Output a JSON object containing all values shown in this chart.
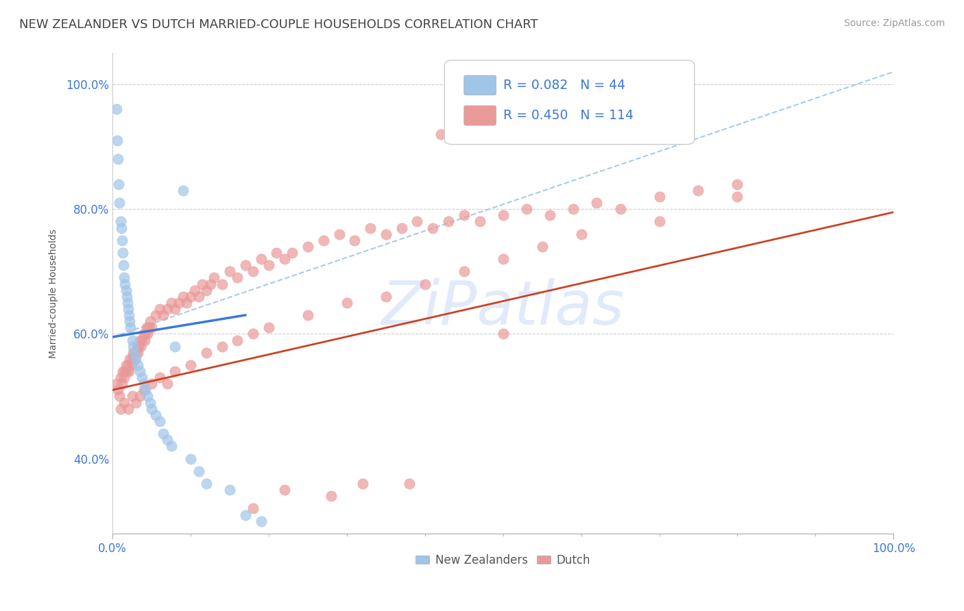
{
  "title": "NEW ZEALANDER VS DUTCH MARRIED-COUPLE HOUSEHOLDS CORRELATION CHART",
  "source": "Source: ZipAtlas.com",
  "ylabel": "Married-couple Households",
  "nz_R": 0.082,
  "nz_N": 44,
  "dutch_R": 0.45,
  "dutch_N": 114,
  "nz_color": "#9fc5e8",
  "dutch_color": "#ea9999",
  "nz_line_color": "#3c78d8",
  "dutch_line_color": "#cc4125",
  "diag_line_color": "#9fc5e8",
  "hgrid_color": "#cccccc",
  "watermark": "ZiPatlas",
  "watermark_color": "#c9daf8",
  "background_color": "#ffffff",
  "xmin": 0.0,
  "xmax": 1.0,
  "ymin": 0.28,
  "ymax": 1.05,
  "nz_x": [
    0.005,
    0.006,
    0.007,
    0.008,
    0.009,
    0.01,
    0.011,
    0.012,
    0.013,
    0.014,
    0.015,
    0.016,
    0.017,
    0.018,
    0.019,
    0.02,
    0.021,
    0.022,
    0.023,
    0.025,
    0.026,
    0.028,
    0.03,
    0.032,
    0.035,
    0.038,
    0.04,
    0.042,
    0.045,
    0.048,
    0.05,
    0.055,
    0.06,
    0.065,
    0.07,
    0.075,
    0.08,
    0.09,
    0.1,
    0.11,
    0.12,
    0.15,
    0.17,
    0.19
  ],
  "nz_y": [
    0.96,
    0.91,
    0.88,
    0.84,
    0.81,
    0.78,
    0.77,
    0.75,
    0.73,
    0.71,
    0.69,
    0.68,
    0.67,
    0.66,
    0.65,
    0.64,
    0.63,
    0.62,
    0.61,
    0.59,
    0.58,
    0.57,
    0.56,
    0.55,
    0.54,
    0.53,
    0.52,
    0.51,
    0.5,
    0.49,
    0.48,
    0.47,
    0.46,
    0.44,
    0.43,
    0.42,
    0.58,
    0.83,
    0.4,
    0.38,
    0.36,
    0.35,
    0.31,
    0.3
  ],
  "dutch_x": [
    0.005,
    0.007,
    0.009,
    0.01,
    0.012,
    0.013,
    0.015,
    0.016,
    0.017,
    0.018,
    0.02,
    0.021,
    0.022,
    0.024,
    0.025,
    0.026,
    0.028,
    0.03,
    0.031,
    0.032,
    0.033,
    0.035,
    0.036,
    0.038,
    0.04,
    0.041,
    0.042,
    0.044,
    0.045,
    0.046,
    0.048,
    0.05,
    0.055,
    0.06,
    0.065,
    0.07,
    0.075,
    0.08,
    0.085,
    0.09,
    0.095,
    0.1,
    0.105,
    0.11,
    0.115,
    0.12,
    0.125,
    0.13,
    0.14,
    0.15,
    0.16,
    0.17,
    0.18,
    0.19,
    0.2,
    0.21,
    0.22,
    0.23,
    0.25,
    0.27,
    0.29,
    0.31,
    0.33,
    0.35,
    0.37,
    0.39,
    0.41,
    0.43,
    0.45,
    0.47,
    0.5,
    0.53,
    0.56,
    0.59,
    0.62,
    0.65,
    0.7,
    0.75,
    0.8,
    0.01,
    0.015,
    0.02,
    0.025,
    0.03,
    0.035,
    0.04,
    0.05,
    0.06,
    0.07,
    0.08,
    0.1,
    0.12,
    0.14,
    0.16,
    0.18,
    0.2,
    0.25,
    0.3,
    0.35,
    0.4,
    0.45,
    0.5,
    0.55,
    0.6,
    0.7,
    0.8,
    0.38,
    0.28,
    0.5,
    0.55,
    0.42,
    0.32,
    0.22,
    0.18
  ],
  "dutch_y": [
    0.52,
    0.51,
    0.5,
    0.53,
    0.52,
    0.54,
    0.53,
    0.54,
    0.55,
    0.54,
    0.55,
    0.54,
    0.56,
    0.55,
    0.56,
    0.57,
    0.56,
    0.57,
    0.58,
    0.57,
    0.58,
    0.59,
    0.58,
    0.59,
    0.6,
    0.59,
    0.6,
    0.61,
    0.6,
    0.61,
    0.62,
    0.61,
    0.63,
    0.64,
    0.63,
    0.64,
    0.65,
    0.64,
    0.65,
    0.66,
    0.65,
    0.66,
    0.67,
    0.66,
    0.68,
    0.67,
    0.68,
    0.69,
    0.68,
    0.7,
    0.69,
    0.71,
    0.7,
    0.72,
    0.71,
    0.73,
    0.72,
    0.73,
    0.74,
    0.75,
    0.76,
    0.75,
    0.77,
    0.76,
    0.77,
    0.78,
    0.77,
    0.78,
    0.79,
    0.78,
    0.79,
    0.8,
    0.79,
    0.8,
    0.81,
    0.8,
    0.82,
    0.83,
    0.84,
    0.48,
    0.49,
    0.48,
    0.5,
    0.49,
    0.5,
    0.51,
    0.52,
    0.53,
    0.52,
    0.54,
    0.55,
    0.57,
    0.58,
    0.59,
    0.6,
    0.61,
    0.63,
    0.65,
    0.66,
    0.68,
    0.7,
    0.72,
    0.74,
    0.76,
    0.78,
    0.82,
    0.36,
    0.34,
    0.6,
    0.93,
    0.92,
    0.36,
    0.35,
    0.32
  ],
  "nz_line_x": [
    0.0,
    0.17
  ],
  "nz_line_y": [
    0.595,
    0.63
  ],
  "dutch_line_x": [
    0.0,
    1.0
  ],
  "dutch_line_y": [
    0.51,
    0.795
  ],
  "diag_line_x": [
    0.0,
    1.0
  ],
  "diag_line_y": [
    0.595,
    1.02
  ]
}
